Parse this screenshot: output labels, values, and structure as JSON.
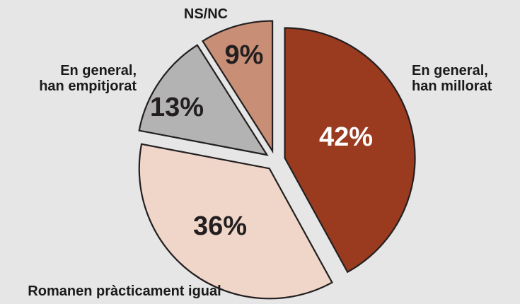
{
  "chart_data": {
    "type": "pie",
    "title": "",
    "slices": [
      {
        "label": "En general, han millorat",
        "label_lines": [
          "En general,",
          "han millorat"
        ],
        "value": 42,
        "value_label": "42%",
        "color": "#9a3b20",
        "text_color": "#ffffff"
      },
      {
        "label": "Romanen pràcticament igual",
        "label_lines": [
          "Romanen pràcticament igual"
        ],
        "value": 36,
        "value_label": "36%",
        "color": "#f0d6c9",
        "text_color": "#231f20"
      },
      {
        "label": "En general, han empitjorat",
        "label_lines": [
          "En general,",
          "han empitjorat"
        ],
        "value": 13,
        "value_label": "13%",
        "color": "#b3b3b3",
        "text_color": "#231f20"
      },
      {
        "label": "NS/NC",
        "label_lines": [
          "NS/NC"
        ],
        "value": 9,
        "value_label": "9%",
        "color": "#c98f76",
        "text_color": "#231f20"
      }
    ],
    "start_angle_deg": 0,
    "direction": "clockwise",
    "exploded": true,
    "legend": "none"
  }
}
